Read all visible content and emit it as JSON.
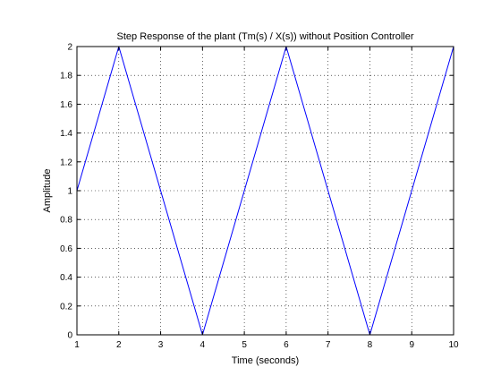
{
  "chart_data": {
    "type": "line",
    "title": "Step Response of the plant (Tm(s) / X(s)) without Position Controller",
    "xlabel": "Time (seconds)",
    "ylabel": "Amplitude",
    "xlim": [
      1,
      10
    ],
    "ylim": [
      0,
      2
    ],
    "xticks": [
      1,
      2,
      3,
      4,
      5,
      6,
      7,
      8,
      9,
      10
    ],
    "yticks": [
      0,
      0.2,
      0.4,
      0.6,
      0.8,
      1,
      1.2,
      1.4,
      1.6,
      1.8,
      2
    ],
    "ytick_labels": [
      "0",
      "0.2",
      "0.4",
      "0.6",
      "0.8",
      "1",
      "1.2",
      "1.4",
      "1.6",
      "1.8",
      "2"
    ],
    "grid": true,
    "series": [
      {
        "color": "#0000ff",
        "x": [
          1,
          2,
          4,
          6,
          8,
          10
        ],
        "y": [
          1,
          2,
          0,
          2,
          0,
          2
        ]
      }
    ]
  }
}
